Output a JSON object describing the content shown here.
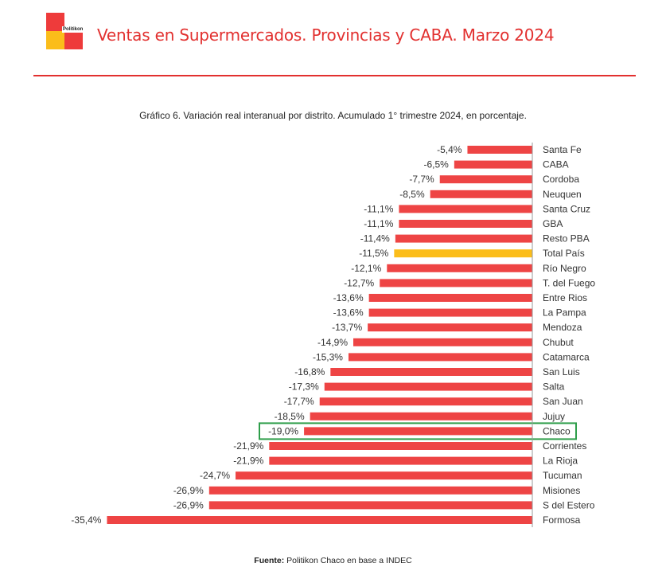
{
  "header": {
    "logo_text": "Politikon",
    "title": "Ventas en Supermercados. Provincias y CABA. Marzo 2024"
  },
  "chart_data": {
    "type": "bar",
    "orientation": "horizontal",
    "title": "Gráfico 6. Variación real interanual por distrito. Acumulado 1° trimestre 2024, en porcentaje.",
    "categories": [
      "Santa Fe",
      "CABA",
      "Cordoba",
      "Neuquen",
      "Santa Cruz",
      "GBA",
      "Resto PBA",
      "Total País",
      "Río Negro",
      "T. del Fuego",
      "Entre Rios",
      "La Pampa",
      "Mendoza",
      "Chubut",
      "Catamarca",
      "San Luis",
      "Salta",
      "San Juan",
      "Jujuy",
      "Chaco",
      "Corrientes",
      "La Rioja",
      "Tucuman",
      "Misiones",
      "S del Estero",
      "Formosa"
    ],
    "values": [
      -5.4,
      -6.5,
      -7.7,
      -8.5,
      -11.1,
      -11.1,
      -11.4,
      -11.5,
      -12.1,
      -12.7,
      -13.6,
      -13.6,
      -13.7,
      -14.9,
      -15.3,
      -16.8,
      -17.3,
      -17.7,
      -18.5,
      -19.0,
      -21.9,
      -21.9,
      -24.7,
      -26.9,
      -26.9,
      -35.4
    ],
    "value_labels": [
      "-5,4%",
      "-6,5%",
      "-7,7%",
      "-8,5%",
      "-11,1%",
      "-11,1%",
      "-11,4%",
      "-11,5%",
      "-12,1%",
      "-12,7%",
      "-13,6%",
      "-13,6%",
      "-13,7%",
      "-14,9%",
      "-15,3%",
      "-16,8%",
      "-17,3%",
      "-17,7%",
      "-18,5%",
      "-19,0%",
      "-21,9%",
      "-21,9%",
      "-24,7%",
      "-26,9%",
      "-26,9%",
      "-35,4%"
    ],
    "colors": {
      "default": "#ee4444",
      "total": "#fbbd1a",
      "highlight_box": "#2e9e4a"
    },
    "emphasized_category": "Total País",
    "highlighted_category": "Chaco",
    "grid": false,
    "legend": false
  },
  "footer": {
    "source_label": "Fuente:",
    "source_text": "Politikon Chaco en base a INDEC"
  }
}
